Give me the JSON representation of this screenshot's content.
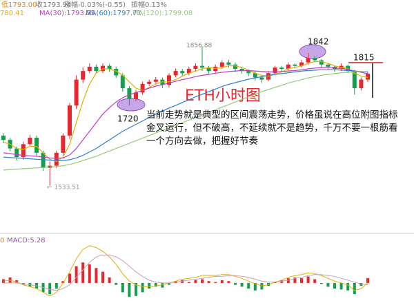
{
  "header": [
    "低1793.00",
    "收1793.94",
    "涨幅-0.03%(-0.55)",
    "振幅0.13%"
  ],
  "chart_data": [
    {
      "type": "candlestick",
      "title": "ETH小时图",
      "note": "当前走势就是典型的区间震荡走势，价格虽说在高位附图指标金叉运行，但不破高，不延续就不是趋势，千万不要一根筋看一个方向去做，把握好节奏",
      "annotations": [
        "1856.88",
        "1842",
        "1720",
        "1815",
        "← 1533.51"
      ],
      "up_color": "#e8262e",
      "down_color": "#13a04c",
      "ylim": [
        1437,
        1933
      ],
      "open": [
        1650,
        1640,
        1620,
        1600,
        1630,
        1645,
        1610,
        1575,
        1580,
        1610,
        1650,
        1720,
        1780,
        1800,
        1810,
        1800,
        1812,
        1805,
        1790,
        1760,
        1735,
        1750,
        1770,
        1775,
        1780,
        1768,
        1790,
        1800,
        1795,
        1805,
        1812,
        1808,
        1800,
        1810,
        1820,
        1815,
        1805,
        1800,
        1795,
        1785,
        1780,
        1795,
        1808,
        1805,
        1815,
        1812,
        1820,
        1830,
        1825,
        1815,
        1810,
        1805,
        1812,
        1800,
        1760,
        1780
      ],
      "high": [
        1656,
        1645,
        1625,
        1636,
        1652,
        1650,
        1615,
        1590,
        1615,
        1655,
        1726,
        1790,
        1808,
        1818,
        1815,
        1818,
        1816,
        1810,
        1795,
        1765,
        1756,
        1775,
        1780,
        1786,
        1785,
        1795,
        1806,
        1805,
        1810,
        1818,
        1856.88,
        1812,
        1815,
        1825,
        1826,
        1820,
        1810,
        1804,
        1800,
        1790,
        1800,
        1812,
        1812,
        1820,
        1818,
        1826,
        1842,
        1835,
        1828,
        1818,
        1812,
        1818,
        1815,
        1803,
        1785,
        1798
      ],
      "low": [
        1632,
        1614,
        1592,
        1594,
        1624,
        1603,
        1568,
        1533.51,
        1574,
        1604,
        1642,
        1712,
        1772,
        1795,
        1794,
        1795,
        1798,
        1784,
        1752,
        1720,
        1730,
        1745,
        1765,
        1770,
        1760,
        1762,
        1785,
        1788,
        1790,
        1798,
        1800,
        1794,
        1796,
        1805,
        1808,
        1798,
        1794,
        1788,
        1778,
        1772,
        1776,
        1790,
        1798,
        1800,
        1806,
        1808,
        1815,
        1820,
        1808,
        1804,
        1798,
        1800,
        1795,
        1745,
        1755,
        1775
      ],
      "close": [
        1640,
        1620,
        1600,
        1630,
        1645,
        1610,
        1575,
        1580,
        1610,
        1650,
        1720,
        1780,
        1800,
        1810,
        1800,
        1812,
        1805,
        1790,
        1760,
        1735,
        1750,
        1770,
        1775,
        1780,
        1768,
        1790,
        1800,
        1795,
        1805,
        1812,
        1808,
        1800,
        1810,
        1820,
        1815,
        1805,
        1800,
        1795,
        1785,
        1780,
        1795,
        1808,
        1805,
        1815,
        1812,
        1820,
        1830,
        1825,
        1815,
        1810,
        1805,
        1812,
        1800,
        1760,
        1780,
        1793.94
      ],
      "series": [
        {
          "name": "780.41",
          "color": "#e0b000",
          "values": [
            1635,
            1630,
            1620,
            1618,
            1625,
            1625,
            1610,
            1595,
            1590,
            1600,
            1630,
            1680,
            1730,
            1770,
            1795,
            1805,
            1805,
            1800,
            1790,
            1775,
            1760,
            1755,
            1762,
            1770,
            1775,
            1775,
            1780,
            1788,
            1795,
            1800,
            1805,
            1808,
            1806,
            1808,
            1812,
            1812,
            1808,
            1802,
            1795,
            1790,
            1788,
            1792,
            1798,
            1805,
            1808,
            1812,
            1818,
            1822,
            1822,
            1818,
            1812,
            1808,
            1806,
            1795,
            1788,
            1785
          ]
        },
        {
          "name": "MA(30):1793.55",
          "color": "#c23cc2",
          "values": [
            1610,
            1608,
            1606,
            1604,
            1603,
            1602,
            1600,
            1598,
            1597,
            1598,
            1605,
            1620,
            1640,
            1660,
            1680,
            1700,
            1715,
            1728,
            1738,
            1745,
            1750,
            1755,
            1760,
            1765,
            1768,
            1772,
            1776,
            1780,
            1783,
            1787,
            1790,
            1792,
            1795,
            1797,
            1799,
            1800,
            1801,
            1801,
            1800,
            1799,
            1798,
            1798,
            1799,
            1800,
            1801,
            1803,
            1805,
            1807,
            1808,
            1808,
            1807,
            1806,
            1804,
            1800,
            1797,
            1794
          ]
        },
        {
          "name": "MA(60):1797.71",
          "color": "#2b7fcf",
          "values": [
            1600,
            1599,
            1598,
            1597,
            1596,
            1595,
            1594,
            1593,
            1592,
            1592,
            1594,
            1598,
            1604,
            1612,
            1620,
            1630,
            1640,
            1650,
            1660,
            1668,
            1676,
            1684,
            1692,
            1700,
            1707,
            1714,
            1720,
            1727,
            1733,
            1740,
            1746,
            1752,
            1758,
            1764,
            1769,
            1773,
            1777,
            1781,
            1784,
            1787,
            1790,
            1792,
            1794,
            1796,
            1798,
            1800,
            1801,
            1802,
            1803,
            1803,
            1803,
            1802,
            1801,
            1800,
            1799,
            1798
          ]
        },
        {
          "name": "MA(120):1799.08",
          "color": "#97c97a",
          "values": [
            1570,
            1571,
            1572,
            1573,
            1574,
            1575,
            1576,
            1577,
            1578,
            1580,
            1583,
            1587,
            1592,
            1597,
            1602,
            1608,
            1614,
            1620,
            1626,
            1632,
            1638,
            1644,
            1650,
            1656,
            1662,
            1668,
            1674,
            1680,
            1686,
            1692,
            1698,
            1704,
            1710,
            1716,
            1722,
            1728,
            1734,
            1740,
            1746,
            1752,
            1757,
            1762,
            1767,
            1772,
            1776,
            1780,
            1784,
            1787,
            1790,
            1792,
            1794,
            1796,
            1797,
            1798,
            1799,
            1799
          ]
        }
      ]
    },
    {
      "type": "macd",
      "title": "MACD:5.28",
      "axis_label": "0",
      "up_color": "#e8262e",
      "down_color": "#13a04c",
      "ylim": [
        -20,
        45
      ],
      "values": [
        4,
        6,
        3,
        -2,
        -4,
        -6,
        -10,
        -12,
        -6,
        2,
        10,
        18,
        22,
        20,
        16,
        12,
        6,
        -2,
        -10,
        -15,
        -14,
        -10,
        -6,
        -4,
        -5,
        -2,
        2,
        3,
        1,
        3,
        4,
        2,
        1,
        3,
        2,
        -2,
        -4,
        -6,
        -8,
        -7,
        -3,
        1,
        3,
        5,
        6,
        5,
        7,
        4,
        -1,
        -4,
        -6,
        -7,
        -8,
        -12,
        -3,
        5.28
      ],
      "lines": [
        {
          "color": "#e0b000",
          "values": [
            2,
            3,
            1,
            -2,
            -4,
            -6,
            -10,
            -14,
            -10,
            0,
            12,
            26,
            36,
            40,
            38,
            34,
            28,
            20,
            10,
            2,
            -2,
            -4,
            -4,
            -3,
            -2,
            0,
            2,
            4,
            5,
            6,
            8,
            8,
            8,
            9,
            9,
            7,
            5,
            2,
            -1,
            -3,
            -2,
            1,
            3,
            6,
            8,
            9,
            11,
            10,
            8,
            5,
            2,
            0,
            -2,
            -8,
            -6,
            0
          ]
        },
        {
          "color": "#c9a0b8",
          "values": [
            0,
            0,
            0,
            -1,
            -2,
            -3,
            -5,
            -7,
            -8,
            -6,
            -2,
            6,
            14,
            22,
            28,
            30,
            30,
            28,
            24,
            18,
            12,
            7,
            3,
            1,
            0,
            0,
            1,
            2,
            3,
            4,
            5,
            6,
            7,
            7,
            8,
            8,
            7,
            6,
            4,
            2,
            1,
            1,
            2,
            3,
            5,
            6,
            8,
            9,
            9,
            8,
            7,
            5,
            3,
            1,
            -1,
            -2
          ]
        }
      ]
    }
  ]
}
